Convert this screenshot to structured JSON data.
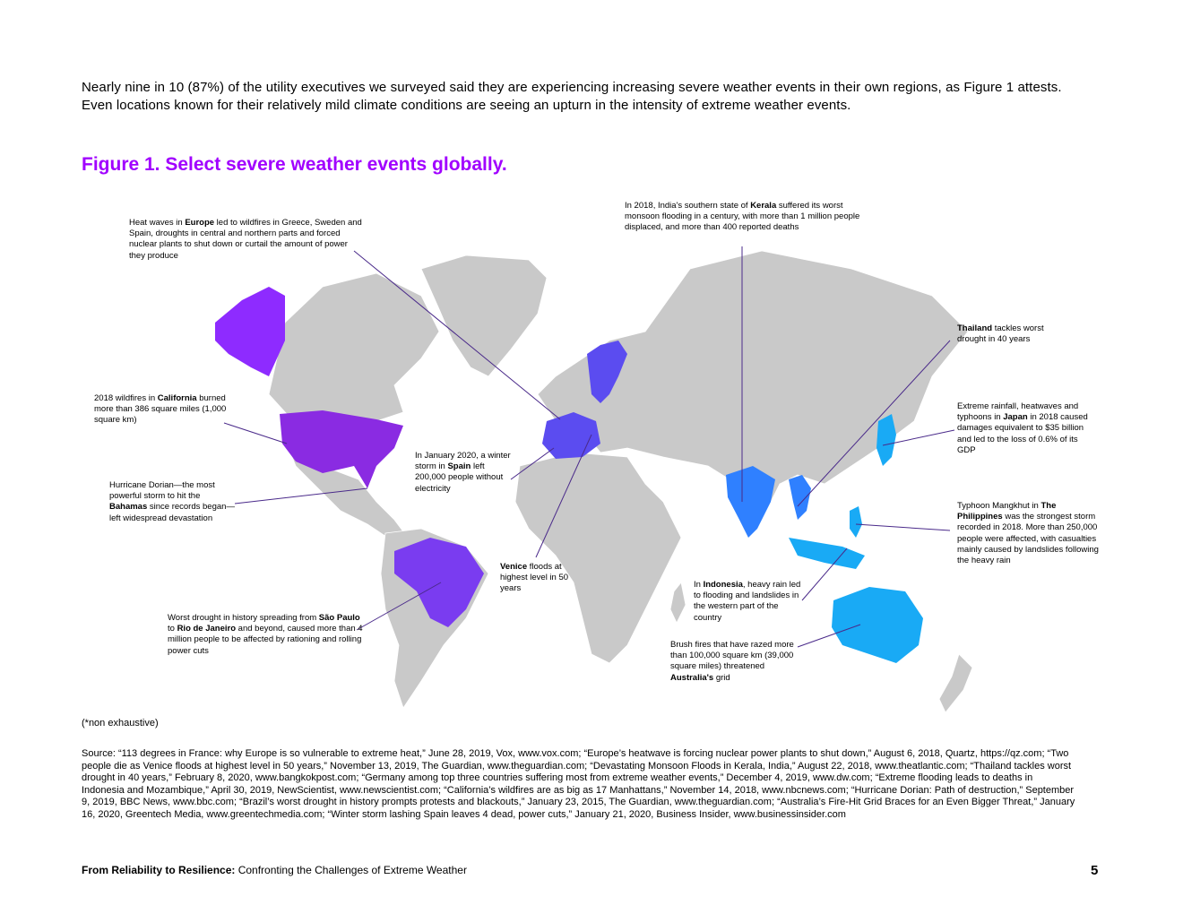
{
  "intro_text": "Nearly nine in 10 (87%) of the utility executives we surveyed said they are experiencing increasing severe weather events in their own regions, as Figure 1 attests. Even locations known for their relatively mild climate conditions are seeing an upturn in the intensity of extreme weather events.",
  "figure_title": "Figure 1. Select severe weather events globally.",
  "colors": {
    "accent": "#a100ff",
    "land": "#c9c9c9",
    "americas": "#8a2be2",
    "europe": "#5b4cf0",
    "asia": "#2f80ff",
    "oceania": "#19aaf5"
  },
  "annotations": {
    "europe": {
      "pre": "Heat waves in ",
      "bold": "Europe",
      "post": " led to wildfires in Greece, Sweden and Spain, droughts in central and northern parts and forced nuclear plants to shut down or curtail the amount of power they produce"
    },
    "kerala": {
      "pre": "In 2018, India's southern state of ",
      "bold": "Kerala",
      "post": " suffered its worst monsoon flooding in a century, with more than 1 million people displaced, and more than 400 reported deaths"
    },
    "thailand": {
      "pre": "",
      "bold": "Thailand",
      "post": " tackles worst drought in 40 years"
    },
    "california": {
      "pre": "2018 wildfires in ",
      "bold": "California",
      "post": " burned more than 386 square miles (1,000 square km)"
    },
    "japan": {
      "pre": "Extreme rainfall, heatwaves and typhoons in ",
      "bold": "Japan",
      "post": " in 2018 caused damages equivalent to $35 billion and led to the loss of 0.6% of its GDP"
    },
    "spain": {
      "pre": "In January 2020, a winter storm in ",
      "bold": "Spain",
      "post": " left 200,000 people without electricity"
    },
    "bahamas": {
      "pre": "Hurricane Dorian—the most powerful storm to hit the ",
      "bold": "Bahamas",
      "post": " since records began—left widespread devastation"
    },
    "philippines": {
      "pre": "Typhoon Mangkhut in ",
      "bold": "The Philippines",
      "post": " was the strongest storm recorded in 2018. More than 250,000 people were affected, with casualties mainly caused by landslides following the heavy rain"
    },
    "venice": {
      "pre": "",
      "bold": "Venice",
      "post": " floods at highest level in 50 years"
    },
    "indonesia": {
      "pre": "In ",
      "bold": "Indonesia",
      "post": ", heavy rain led to flooding and landslides in the western part of the country"
    },
    "brazil": {
      "pre": "Worst drought in history spreading from ",
      "bold": "São Paulo",
      "mid": " to ",
      "bold2": "Rio de Janeiro",
      "post": " and beyond, caused more than 4 million people to be affected by rationing and rolling power cuts"
    },
    "australia": {
      "pre": "Brush fires that have razed more than 100,000 square km (39,000 square miles) threatened ",
      "bold": "Australia's",
      "post": " grid"
    }
  },
  "note": "(*non exhaustive)",
  "source": "Source: “113 degrees in France: why Europe is so vulnerable to extreme heat,” June 28, 2019, Vox, www.vox.com; “Europe’s heatwave is forcing nuclear power plants to shut down,” August 6, 2018, Quartz, https://qz.com; “Two people die as Venice floods at highest level in 50 years,” November 13, 2019, The Guardian, www.theguardian.com; “Devastating Monsoon Floods in Kerala, India,” August 22, 2018, www.theatlantic.com; “Thailand tackles worst drought in 40 years,” February 8, 2020, www.bangkokpost.com; “Germany among top three countries suffering most from extreme weather events,” December 4, 2019, www.dw.com; “Extreme flooding leads to deaths in Indonesia and Mozambique,” April 30, 2019, NewScientist, www.newscientist.com; “California’s wildfires are as big as 17 Manhattans,” November 14, 2018, www.nbcnews.com; “Hurricane Dorian: Path of destruction,” September 9, 2019, BBC News, www.bbc.com; “Brazil’s worst drought in history prompts protests and blackouts,” January 23, 2015, The Guardian, www.theguardian.com; “Australia’s Fire-Hit Grid Braces for an Even Bigger Threat,” January 16, 2020, Greentech Media, www.greentechmedia.com; “Winter storm lashing Spain leaves 4 dead, power cuts,” January 21, 2020, Business Insider, www.businessinsider.com",
  "footer": {
    "bold": "From Reliability to Resilience:",
    "rest": " Confronting the Challenges of Extreme Weather"
  },
  "page_number": "5"
}
